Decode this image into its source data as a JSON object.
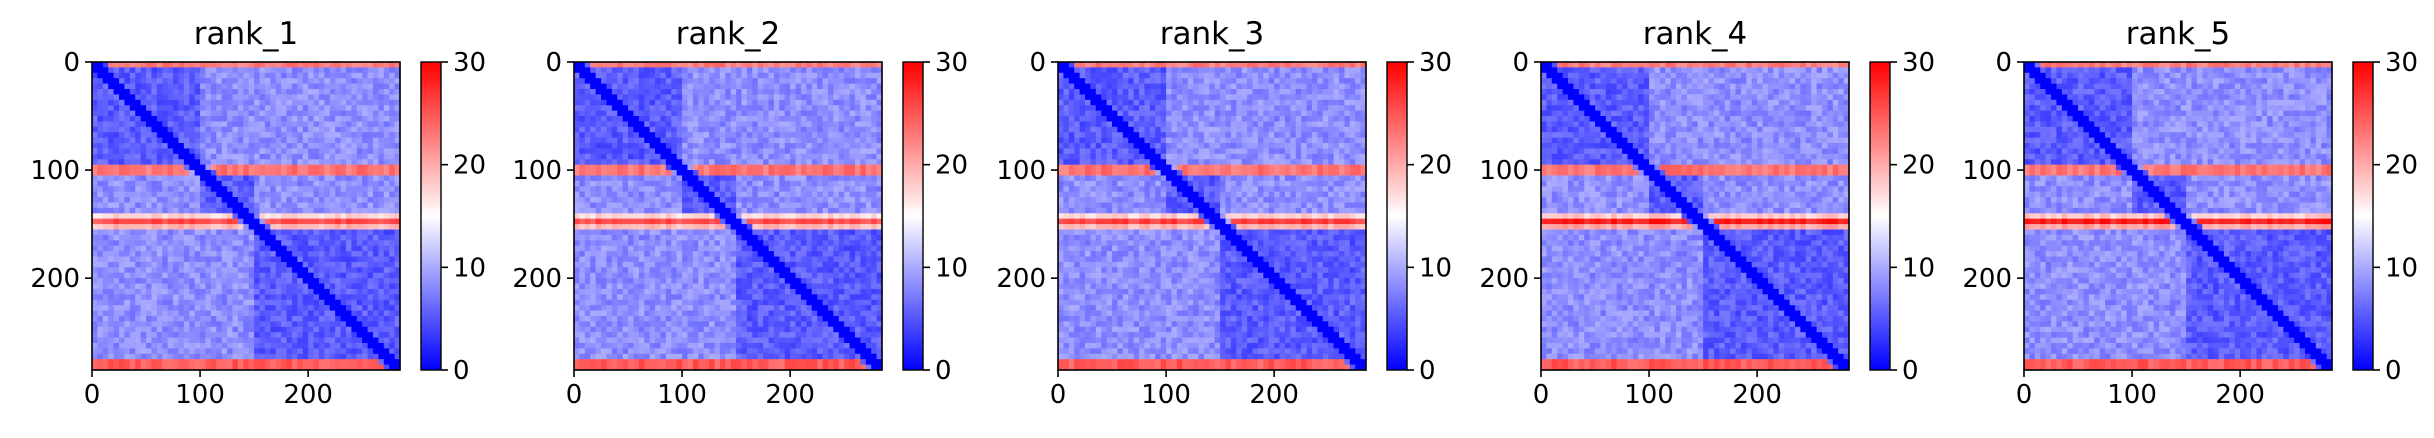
{
  "colors": {
    "low": "#0000ff",
    "mid": "#ffffff",
    "high": "#ff0000",
    "axis": "#000000"
  },
  "chart_data": [
    {
      "type": "heatmap",
      "title": "rank_1",
      "matrix_size": 285,
      "xlim": [
        0,
        285
      ],
      "ylim": [
        285,
        0
      ],
      "xticks": [
        0,
        100,
        200
      ],
      "yticks": [
        0,
        100,
        200
      ],
      "colorbar": {
        "label": "",
        "range": [
          0,
          30
        ],
        "ticks": [
          0,
          10,
          20,
          30
        ]
      },
      "high_bands": [
        0,
        100,
        148,
        280
      ],
      "band_strength": [
        0.8,
        0.85,
        0.75,
        1.0
      ],
      "domain_boundaries": [
        0,
        100,
        148,
        285
      ]
    },
    {
      "type": "heatmap",
      "title": "rank_2",
      "matrix_size": 285,
      "xlim": [
        0,
        285
      ],
      "ylim": [
        285,
        0
      ],
      "xticks": [
        0,
        100,
        200
      ],
      "yticks": [
        0,
        100,
        200
      ],
      "colorbar": {
        "label": "",
        "range": [
          0,
          30
        ],
        "ticks": [
          0,
          10,
          20,
          30
        ]
      },
      "high_bands": [
        0,
        100,
        148,
        280
      ],
      "band_strength": [
        0.8,
        0.85,
        0.75,
        1.0
      ],
      "domain_boundaries": [
        0,
        100,
        148,
        285
      ]
    },
    {
      "type": "heatmap",
      "title": "rank_3",
      "matrix_size": 285,
      "xlim": [
        0,
        285
      ],
      "ylim": [
        285,
        0
      ],
      "xticks": [
        0,
        100,
        200
      ],
      "yticks": [
        0,
        100,
        200
      ],
      "colorbar": {
        "label": "",
        "range": [
          0,
          30
        ],
        "ticks": [
          0,
          10,
          20,
          30
        ]
      },
      "high_bands": [
        0,
        100,
        148,
        280
      ],
      "band_strength": [
        0.8,
        0.85,
        0.8,
        1.0
      ],
      "domain_boundaries": [
        0,
        100,
        148,
        285
      ]
    },
    {
      "type": "heatmap",
      "title": "rank_4",
      "matrix_size": 285,
      "xlim": [
        0,
        285
      ],
      "ylim": [
        285,
        0
      ],
      "xticks": [
        0,
        100,
        200
      ],
      "yticks": [
        0,
        100,
        200
      ],
      "colorbar": {
        "label": "",
        "range": [
          0,
          30
        ],
        "ticks": [
          0,
          10,
          20,
          30
        ]
      },
      "high_bands": [
        0,
        100,
        148,
        280
      ],
      "band_strength": [
        0.8,
        0.85,
        0.95,
        1.0
      ],
      "domain_boundaries": [
        0,
        100,
        148,
        285
      ]
    },
    {
      "type": "heatmap",
      "title": "rank_5",
      "matrix_size": 285,
      "xlim": [
        0,
        285
      ],
      "ylim": [
        285,
        0
      ],
      "xticks": [
        0,
        100,
        200
      ],
      "yticks": [
        0,
        100,
        200
      ],
      "colorbar": {
        "label": "",
        "range": [
          0,
          30
        ],
        "ticks": [
          0,
          10,
          20,
          30
        ]
      },
      "high_bands": [
        0,
        100,
        148,
        280
      ],
      "band_strength": [
        0.8,
        0.85,
        0.95,
        1.0
      ],
      "domain_boundaries": [
        0,
        100,
        148,
        285
      ]
    }
  ]
}
